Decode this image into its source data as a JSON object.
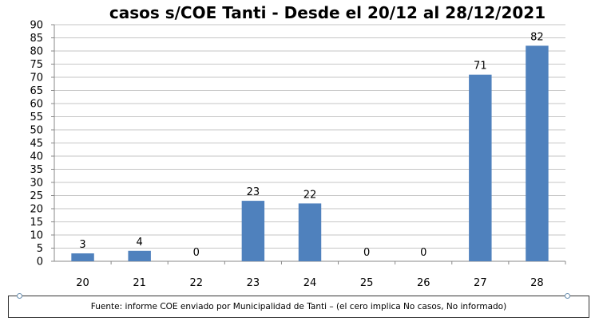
{
  "chart_data": {
    "type": "bar",
    "title": "casos s/COE Tanti - Desde el 20/12 al 28/12/2021",
    "categories": [
      "20",
      "21",
      "22",
      "23",
      "24",
      "25",
      "26",
      "27",
      "28"
    ],
    "values": [
      3,
      4,
      0,
      23,
      22,
      0,
      0,
      71,
      82
    ],
    "ylim": [
      0,
      90
    ],
    "yticks": [
      0,
      5,
      10,
      15,
      20,
      25,
      30,
      35,
      40,
      45,
      50,
      55,
      60,
      65,
      70,
      75,
      80,
      85,
      90
    ],
    "grid": true,
    "bar_color": "#4f81bd",
    "data_labels": true
  },
  "source_note": "Fuente: informe COE enviado por Municipalidad de Tanti – (el cero implica No casos, No informado)"
}
